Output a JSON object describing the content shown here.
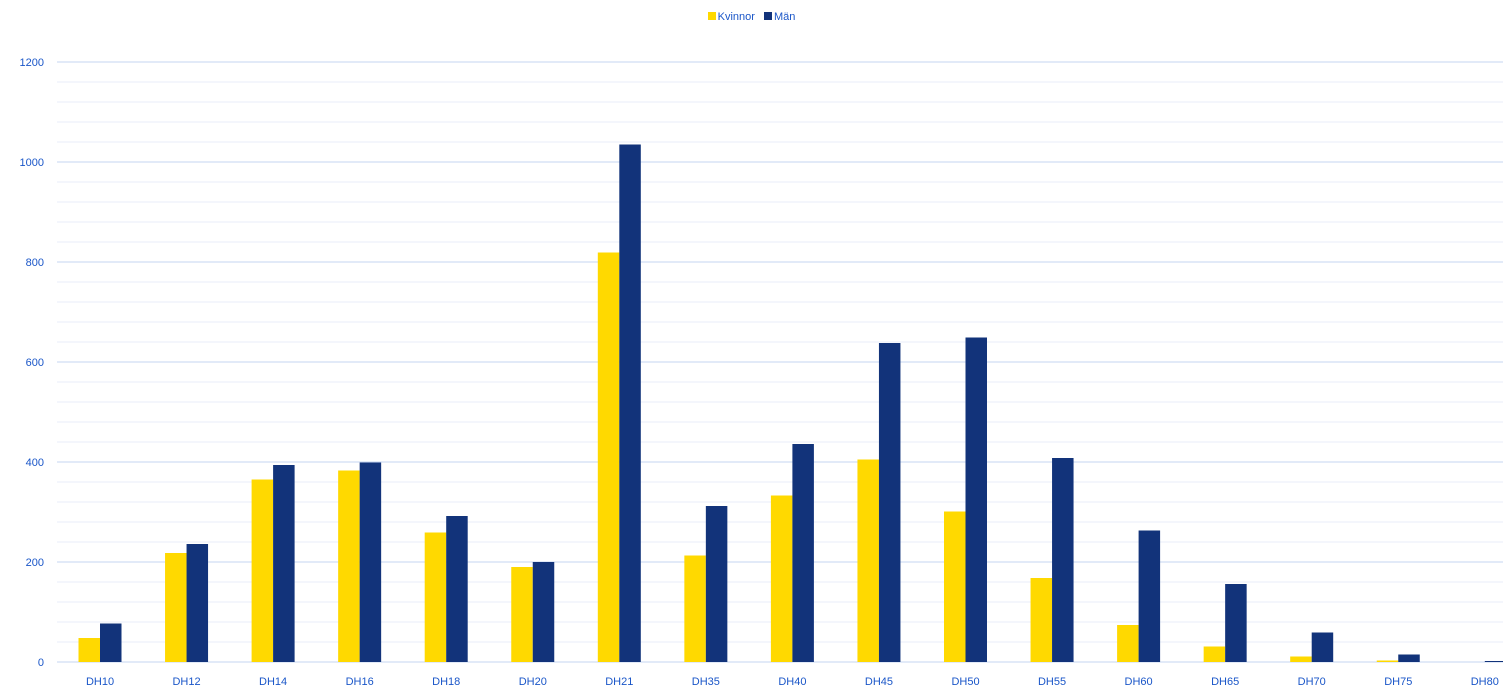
{
  "chart_data": {
    "type": "bar",
    "title": "",
    "xlabel": "",
    "ylabel": "",
    "ylim": [
      0,
      1200
    ],
    "y_ticks": [
      0,
      200,
      400,
      600,
      800,
      1000,
      1200
    ],
    "grid": true,
    "legend_position": "top-center",
    "categories": [
      "DH10",
      "DH12",
      "DH14",
      "DH16",
      "DH18",
      "DH20",
      "DH21",
      "DH35",
      "DH40",
      "DH45",
      "DH50",
      "DH55",
      "DH60",
      "DH65",
      "DH70",
      "DH75",
      "DH80"
    ],
    "series": [
      {
        "name": "Kvinnor",
        "color": "#ffd900",
        "values": [
          48,
          218,
          365,
          383,
          259,
          190,
          819,
          213,
          333,
          405,
          301,
          168,
          74,
          31,
          11,
          3,
          0
        ]
      },
      {
        "name": "Män",
        "color": "#12337a",
        "values": [
          77,
          236,
          394,
          399,
          292,
          200,
          1035,
          312,
          436,
          638,
          649,
          408,
          263,
          156,
          59,
          15,
          2
        ]
      }
    ]
  },
  "colors": {
    "axis_text": "#1a56c8",
    "grid_major": "#c5d6f0",
    "grid_minor": "#e8eef9"
  }
}
